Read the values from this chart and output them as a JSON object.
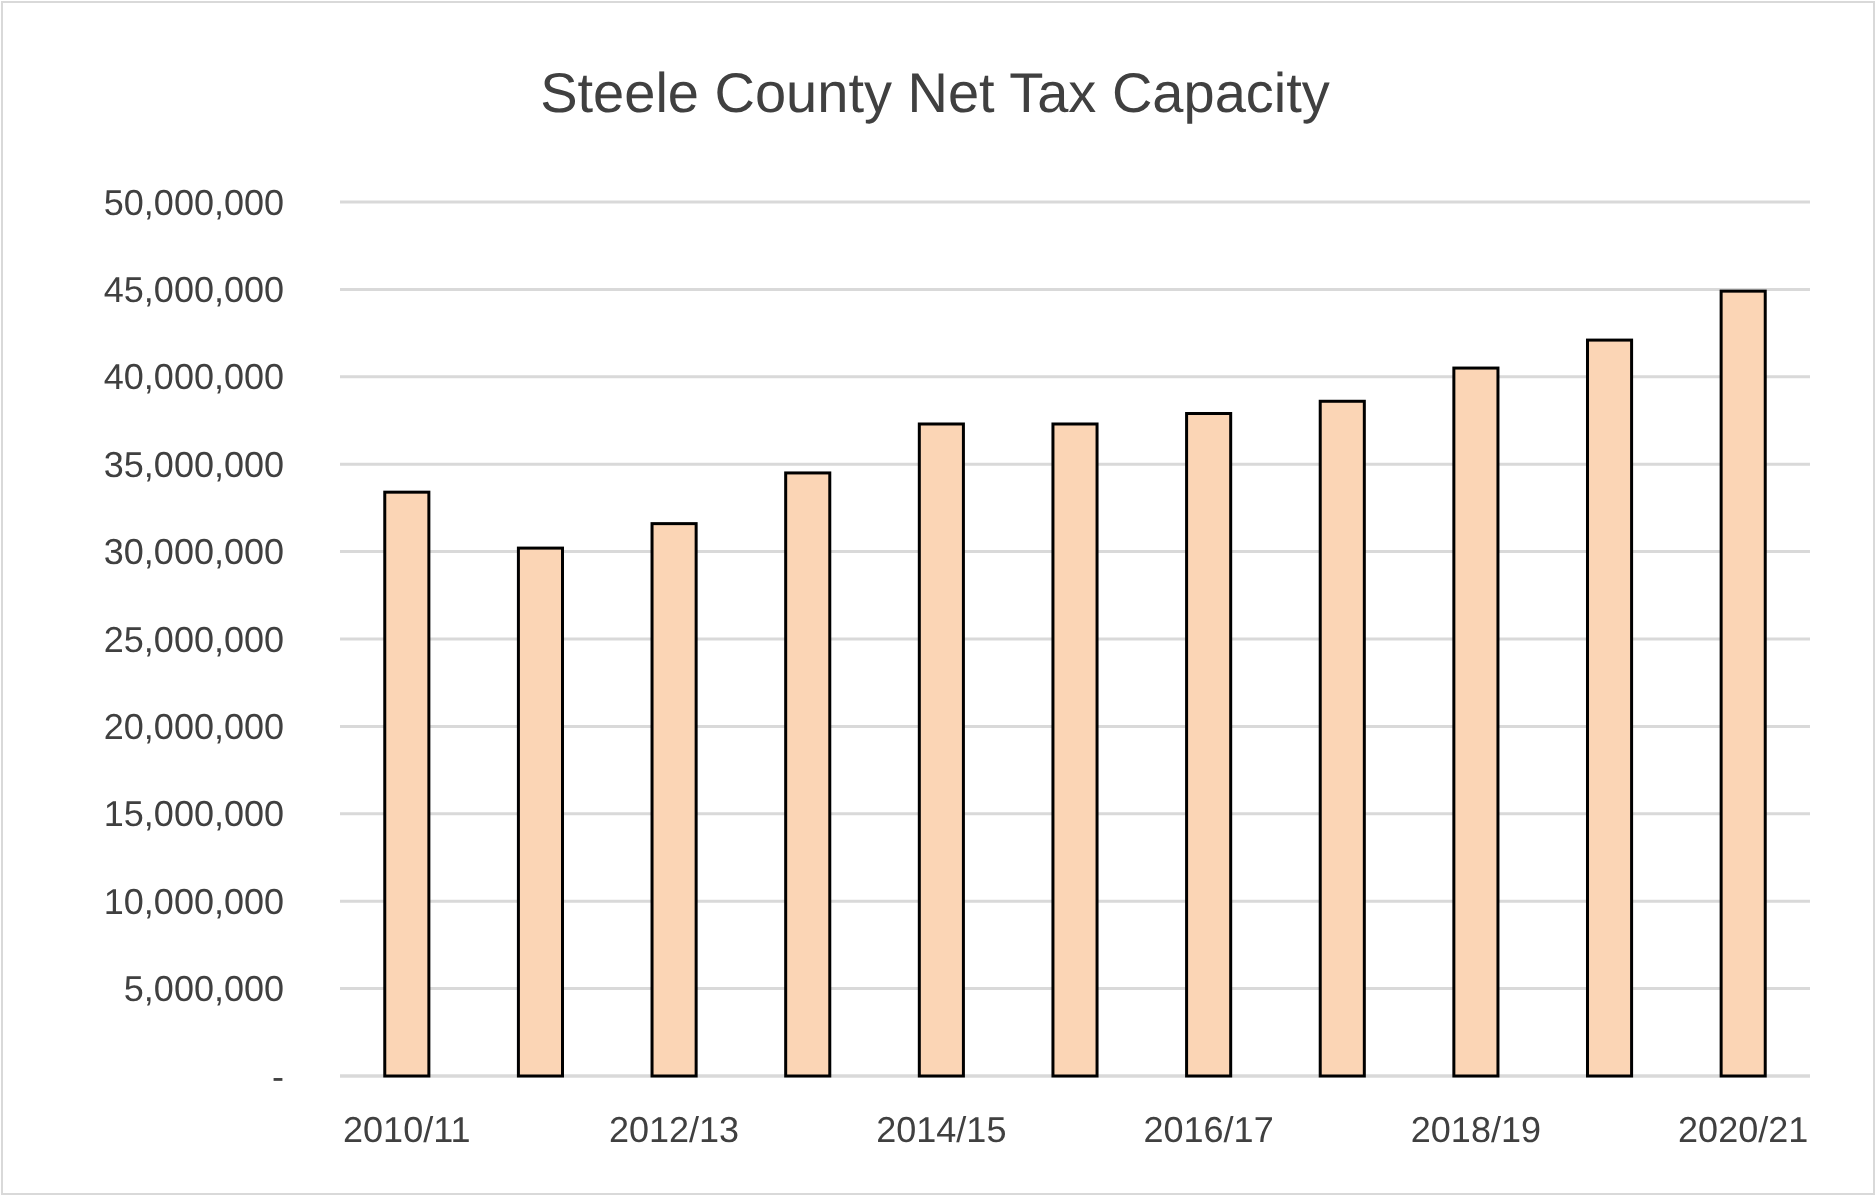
{
  "chart_data": {
    "type": "bar",
    "title": "Steele County Net Tax Capacity",
    "categories": [
      "2010/11",
      null,
      "2012/13",
      null,
      "2014/15",
      null,
      "2016/17",
      null,
      "2018/19",
      null,
      "2020/21"
    ],
    "values": [
      33400000,
      30200000,
      31600000,
      34500000,
      37300000,
      37300000,
      37900000,
      38600000,
      40500000,
      42100000,
      44900000
    ],
    "color": "#fbd5b5",
    "ylim": [
      0,
      50000000
    ],
    "yticks": [
      {
        "value": 0,
        "label": "-"
      },
      {
        "value": 5000000,
        "label": "5,000,000"
      },
      {
        "value": 10000000,
        "label": "10,000,000"
      },
      {
        "value": 15000000,
        "label": "15,000,000"
      },
      {
        "value": 20000000,
        "label": "20,000,000"
      },
      {
        "value": 25000000,
        "label": "25,000,000"
      },
      {
        "value": 30000000,
        "label": "30,000,000"
      },
      {
        "value": 35000000,
        "label": "35,000,000"
      },
      {
        "value": 40000000,
        "label": "40,000,000"
      },
      {
        "value": 45000000,
        "label": "45,000,000"
      },
      {
        "value": 50000000,
        "label": "50,000,000"
      }
    ],
    "grid": "y"
  }
}
